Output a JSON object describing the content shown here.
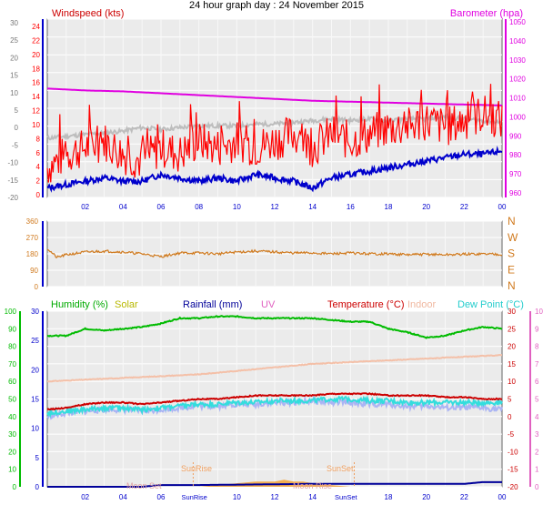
{
  "title": "24 hour graph day : 24 November 2015",
  "colors": {
    "windspeed": "#ff0000",
    "wind_avg": "#0000cc",
    "barometer": "#e000e0",
    "gray_series": "#bdbdbd",
    "direction": "#d07a1e",
    "humidity": "#00bb00",
    "solar": "#c8c800",
    "rainfall": "#000099",
    "uv": "#e060c0",
    "temperature": "#cc0000",
    "indoor": "#f4c0a8",
    "dew_point": "#33dddd",
    "lavender": "#aab4f4",
    "solar_fill": "#f2a640",
    "axis_blue": "#0000cc"
  },
  "chart_data": [
    {
      "type": "line",
      "panel": "wind",
      "labels": {
        "left_title": "Windspeed (kts)",
        "right_title": "Barometer (hpa)"
      },
      "x_ticks": [
        "02",
        "04",
        "06",
        "08",
        "10",
        "12",
        "14",
        "16",
        "18",
        "20",
        "22",
        "00"
      ],
      "xlim": [
        0,
        24
      ],
      "left_outer_ticks": [
        "30",
        "25",
        "20",
        "15",
        "10",
        "5",
        "0",
        "-5",
        "-10",
        "-15",
        "-20"
      ],
      "left_outer_lim": [
        -20,
        30
      ],
      "left_inner_ticks": [
        "24",
        "22",
        "20",
        "18",
        "16",
        "14",
        "12",
        "10",
        "8",
        "6",
        "4",
        "2",
        "0"
      ],
      "left_inner_lim": [
        0,
        25
      ],
      "right_ticks": [
        "1050",
        "1040",
        "1030",
        "1020",
        "1010",
        "1000",
        "990",
        "980",
        "970",
        "960"
      ],
      "right_lim": [
        955,
        1050
      ],
      "series": [
        {
          "name": "Barometer (hpa)",
          "axis": "right",
          "x": [
            0,
            2,
            4,
            6,
            8,
            10,
            12,
            14,
            16,
            18,
            20,
            22,
            24
          ],
          "values": [
            1013,
            1012,
            1011.5,
            1010.5,
            1009.5,
            1008.5,
            1007.5,
            1006.5,
            1006,
            1005.5,
            1005,
            1004.5,
            1004
          ]
        },
        {
          "name": "Windspeed (kts)",
          "axis": "inner",
          "x": [
            0,
            1,
            2,
            3,
            4,
            5,
            6,
            7,
            8,
            9,
            10,
            11,
            12,
            13,
            14,
            15,
            16,
            17,
            18,
            19,
            20,
            21,
            22,
            23,
            24
          ],
          "values": [
            4,
            6,
            7,
            8,
            6,
            5,
            7,
            6,
            8,
            7,
            8,
            7,
            8,
            9,
            7,
            9,
            8,
            9,
            10,
            10,
            11,
            10,
            11,
            12,
            11
          ]
        },
        {
          "name": "",
          "axis": "inner",
          "x": [
            0,
            1,
            2,
            3,
            4,
            5,
            6,
            7,
            8,
            9,
            10,
            11,
            12,
            13,
            14,
            15,
            16,
            17,
            18,
            19,
            20,
            21,
            22,
            23,
            24
          ],
          "values": [
            1,
            1.5,
            2,
            2.5,
            2,
            2,
            3,
            2.5,
            2,
            2.5,
            2,
            3,
            2.5,
            2,
            1,
            2.5,
            3,
            3.5,
            4,
            4.5,
            5,
            5.5,
            6,
            6,
            6.5
          ]
        },
        {
          "name": "",
          "axis": "outer",
          "x": [
            0,
            1,
            2,
            3,
            4,
            5,
            6,
            7,
            8,
            9,
            10,
            11,
            12,
            13,
            14,
            15,
            16,
            17,
            18,
            19,
            20,
            21,
            22,
            23,
            24
          ],
          "values": [
            -3,
            -2.5,
            -2,
            -1.5,
            -1,
            0,
            -0.5,
            0,
            0.5,
            0.5,
            0.5,
            1,
            1,
            1.5,
            2,
            2.5,
            2,
            2.5,
            2,
            2.5,
            2.5,
            3,
            2.5,
            2,
            1.5
          ]
        }
      ]
    },
    {
      "type": "line",
      "panel": "direction",
      "x_ticks": [],
      "xlim": [
        0,
        24
      ],
      "left_ticks": [
        "360",
        "270",
        "180",
        "90",
        "0"
      ],
      "right_ticks": [
        "N",
        "W",
        "S",
        "E",
        "N"
      ],
      "ylim": [
        0,
        360
      ],
      "series": [
        {
          "name": "",
          "x": [
            0,
            0.5,
            1,
            2,
            3,
            4,
            5,
            6,
            7,
            8,
            9,
            10,
            11,
            12,
            13,
            14,
            15,
            16,
            17,
            18,
            19,
            20,
            21,
            22,
            23,
            24
          ],
          "values": [
            210,
            160,
            175,
            190,
            195,
            190,
            180,
            165,
            185,
            185,
            180,
            190,
            195,
            190,
            185,
            185,
            180,
            185,
            180,
            180,
            175,
            178,
            175,
            178,
            180,
            178
          ]
        }
      ]
    },
    {
      "type": "line",
      "panel": "temperature",
      "labels": {
        "humidity": "Humidity  (%)",
        "solar": "Solar",
        "rainfall": "Rainfall (mm)",
        "uv": "UV",
        "temperature": "Temperature (°C)",
        "indoor": "Indoor",
        "dew_point": "Dew Point (°C)",
        "sunrise": "SunRise",
        "sunset": "SunSet",
        "moonset": "Moon Set",
        "moonrise": "Moon Rise"
      },
      "x_ticks": [
        "02",
        "04",
        "06",
        "08",
        "10",
        "12",
        "14",
        "16",
        "18",
        "20",
        "22",
        "00"
      ],
      "x_tick_labels_bottom": [
        "02",
        "04",
        "06",
        "SunRise",
        "10",
        "12",
        "14",
        "SunSet",
        "18",
        "20",
        "22",
        "00"
      ],
      "xlim": [
        0,
        24
      ],
      "left_outer_ticks": [
        "100",
        "90",
        "80",
        "70",
        "60",
        "50",
        "40",
        "30",
        "20",
        "10",
        "0"
      ],
      "left_outer_lim": [
        0,
        100
      ],
      "left_inner_ticks": [
        "30",
        "25",
        "20",
        "15",
        "10",
        "5",
        "0"
      ],
      "left_inner_lim": [
        0,
        30
      ],
      "right_inner_ticks": [
        "30",
        "25",
        "20",
        "15",
        "10",
        "5",
        "0",
        "-5",
        "-10",
        "-15",
        "-20"
      ],
      "right_inner_lim": [
        -20,
        30
      ],
      "right_outer_ticks": [
        "10",
        "9",
        "8",
        "7",
        "6",
        "5",
        "4",
        "3",
        "2",
        "1",
        "0"
      ],
      "right_outer_lim": [
        0,
        10
      ],
      "series": [
        {
          "name": "Humidity  (%)",
          "axis": "left_outer",
          "x": [
            0,
            1,
            2,
            3,
            4,
            5,
            6,
            7,
            8,
            9,
            10,
            11,
            12,
            13,
            14,
            15,
            16,
            17,
            18,
            19,
            20,
            21,
            22,
            23,
            24
          ],
          "values": [
            86,
            86,
            90,
            89,
            90,
            91,
            93,
            96,
            96,
            97,
            97,
            96,
            96,
            96,
            96,
            95,
            94,
            94,
            90,
            88,
            85,
            86,
            89,
            91,
            90
          ]
        },
        {
          "name": "Temperature (°C)",
          "axis": "right_inner",
          "x": [
            0,
            1,
            2,
            3,
            4,
            5,
            6,
            7,
            8,
            9,
            10,
            11,
            12,
            13,
            14,
            15,
            16,
            17,
            18,
            19,
            20,
            21,
            22,
            23,
            24
          ],
          "values": [
            2,
            2.5,
            3.5,
            4,
            4,
            3.5,
            4,
            4.5,
            5,
            5,
            5.5,
            6,
            6,
            6,
            6,
            6.5,
            6.5,
            6.5,
            6,
            6,
            6,
            5.5,
            5.5,
            5,
            5
          ]
        },
        {
          "name": "Indoor",
          "axis": "right_inner",
          "x": [
            0,
            2,
            4,
            6,
            8,
            10,
            12,
            14,
            16,
            18,
            20,
            22,
            24
          ],
          "values": [
            10,
            10.5,
            11,
            11.5,
            12,
            13,
            14,
            15,
            15.5,
            16,
            16.5,
            17,
            17.5
          ]
        },
        {
          "name": "Dew Point (°C)",
          "axis": "right_inner",
          "x": [
            0,
            1,
            2,
            3,
            4,
            5,
            6,
            7,
            8,
            9,
            10,
            11,
            12,
            13,
            14,
            15,
            16,
            17,
            18,
            19,
            20,
            21,
            22,
            23,
            24
          ],
          "values": [
            1,
            1.5,
            2,
            2.5,
            2.5,
            2,
            2.5,
            3,
            3.5,
            3.5,
            4,
            4,
            4.5,
            4.5,
            4.5,
            5,
            5,
            4.5,
            4.5,
            4,
            4,
            4,
            4,
            4,
            4
          ]
        },
        {
          "name": "",
          "axis": "right_inner",
          "x": [
            0,
            1,
            2,
            3,
            4,
            5,
            6,
            7,
            8,
            9,
            10,
            11,
            12,
            13,
            14,
            15,
            16,
            17,
            18,
            19,
            20,
            21,
            22,
            23,
            24
          ],
          "values": [
            0,
            1,
            1.5,
            2,
            2,
            1.5,
            2,
            2.5,
            3,
            3,
            3.5,
            3.5,
            4,
            4,
            4.5,
            4,
            4,
            3.5,
            3.5,
            3,
            3,
            2.5,
            2.5,
            2.5,
            2
          ]
        },
        {
          "name": "Rainfall (mm)",
          "axis": "left_inner",
          "x": [
            0,
            5,
            6,
            8,
            14,
            22,
            23,
            24
          ],
          "values": [
            0,
            0,
            0.3,
            0.3,
            0.5,
            0.5,
            0.8,
            0.8
          ]
        },
        {
          "name": "Solar",
          "axis": "left_outer",
          "type": "area",
          "x": [
            8,
            9,
            10,
            11,
            12,
            12.5,
            13,
            13.5,
            14,
            15,
            16
          ],
          "values": [
            0,
            1,
            2,
            3,
            3,
            4,
            3,
            3,
            2,
            1,
            0
          ]
        }
      ]
    }
  ]
}
